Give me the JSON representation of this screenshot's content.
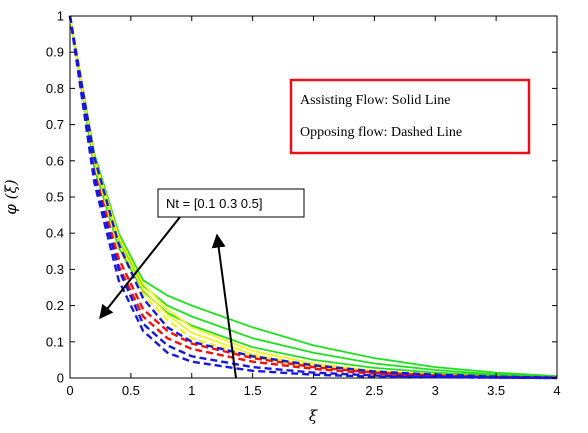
{
  "chart_data": {
    "type": "line",
    "xlabel": "ξ",
    "ylabel": "φ (ξ)",
    "xlim": [
      0,
      4
    ],
    "ylim": [
      0,
      1
    ],
    "x_ticks": [
      "0",
      "0.5",
      "1",
      "1.5",
      "2",
      "2.5",
      "3",
      "3.5",
      "4"
    ],
    "y_ticks": [
      "0",
      "0.1",
      "0.2",
      "0.3",
      "0.4",
      "0.5",
      "0.6",
      "0.7",
      "0.8",
      "0.9",
      "1"
    ],
    "grid": false,
    "legend_box": {
      "line1": "Assisting Flow:  Solid Line",
      "line2": "Opposing flow: Dashed Line",
      "border_color": "#e8101a"
    },
    "annotation": {
      "text": "Nt = [0.1  0.3  0.5]"
    },
    "colors": {
      "green": "#1fe01f",
      "yellow": "#f2f21c",
      "red": "#ee1111",
      "blue": "#1717dd"
    },
    "series": [
      {
        "color": "green",
        "style": "solid",
        "x": [
          0,
          0.2,
          0.4,
          0.6,
          0.8,
          1.0,
          1.5,
          2.0,
          2.5,
          3.0,
          3.5,
          4.0
        ],
        "values": [
          1.0,
          0.62,
          0.4,
          0.27,
          0.228,
          0.2,
          0.14,
          0.09,
          0.055,
          0.03,
          0.015,
          0.005
        ]
      },
      {
        "color": "green",
        "style": "solid",
        "x": [
          0,
          0.2,
          0.4,
          0.6,
          0.8,
          1.0,
          1.5,
          2.0,
          2.5,
          3.0,
          3.5,
          4.0
        ],
        "values": [
          1.0,
          0.6,
          0.38,
          0.255,
          0.2,
          0.17,
          0.11,
          0.07,
          0.04,
          0.022,
          0.01,
          0.003
        ]
      },
      {
        "color": "green",
        "style": "solid",
        "x": [
          0,
          0.2,
          0.4,
          0.6,
          0.8,
          1.0,
          1.5,
          2.0,
          2.5,
          3.0,
          3.5,
          4.0
        ],
        "values": [
          1.0,
          0.58,
          0.36,
          0.24,
          0.18,
          0.145,
          0.085,
          0.05,
          0.028,
          0.015,
          0.007,
          0.002
        ]
      },
      {
        "color": "yellow",
        "style": "solid",
        "x": [
          0,
          0.2,
          0.4,
          0.6,
          0.8,
          1.0,
          1.5,
          2.0,
          2.5,
          3.0,
          3.5,
          4.0
        ],
        "values": [
          1.0,
          0.61,
          0.39,
          0.26,
          0.19,
          0.14,
          0.075,
          0.04,
          0.02,
          0.01,
          0.004,
          0.001
        ]
      },
      {
        "color": "yellow",
        "style": "solid",
        "x": [
          0,
          0.2,
          0.4,
          0.6,
          0.8,
          1.0,
          1.5,
          2.0,
          2.5,
          3.0,
          3.5,
          4.0
        ],
        "values": [
          1.0,
          0.6,
          0.375,
          0.245,
          0.175,
          0.125,
          0.065,
          0.033,
          0.016,
          0.007,
          0.003,
          0.001
        ]
      },
      {
        "color": "yellow",
        "style": "dashed",
        "x": [
          0,
          0.2,
          0.4,
          0.6,
          0.8,
          1.0,
          1.5,
          2.0,
          2.5,
          3.0,
          3.5,
          4.0
        ],
        "values": [
          1.0,
          0.59,
          0.36,
          0.23,
          0.16,
          0.11,
          0.058,
          0.03,
          0.015,
          0.007,
          0.003,
          0.001
        ]
      },
      {
        "color": "red",
        "style": "dashed",
        "x": [
          0,
          0.2,
          0.4,
          0.6,
          0.8,
          1.0,
          1.5,
          2.0,
          2.5,
          3.0,
          3.5,
          4.0
        ],
        "values": [
          1.0,
          0.57,
          0.33,
          0.19,
          0.13,
          0.095,
          0.055,
          0.03,
          0.015,
          0.007,
          0.003,
          0.001
        ]
      },
      {
        "color": "red",
        "style": "dashed",
        "x": [
          0,
          0.2,
          0.4,
          0.6,
          0.8,
          1.0,
          1.5,
          2.0,
          2.5,
          3.0,
          3.5,
          4.0
        ],
        "values": [
          1.0,
          0.56,
          0.31,
          0.17,
          0.11,
          0.08,
          0.045,
          0.025,
          0.012,
          0.006,
          0.002,
          0.001
        ]
      },
      {
        "color": "blue",
        "style": "dashed",
        "x": [
          0,
          0.2,
          0.4,
          0.6,
          0.8,
          1.0,
          1.5,
          2.0,
          2.5,
          3.0,
          3.5,
          4.0
        ],
        "values": [
          1.0,
          0.61,
          0.37,
          0.22,
          0.14,
          0.1,
          0.06,
          0.035,
          0.018,
          0.009,
          0.004,
          0.001
        ]
      },
      {
        "color": "blue",
        "style": "dashed",
        "x": [
          0,
          0.2,
          0.4,
          0.6,
          0.8,
          1.0,
          1.5,
          2.0,
          2.5,
          3.0,
          3.5,
          4.0
        ],
        "values": [
          1.0,
          0.56,
          0.3,
          0.15,
          0.09,
          0.06,
          0.03,
          0.015,
          0.007,
          0.003,
          0.001,
          0.0
        ]
      },
      {
        "color": "blue",
        "style": "dashed",
        "x": [
          0,
          0.2,
          0.4,
          0.6,
          0.8,
          1.0,
          1.5,
          2.0,
          2.5,
          3.0,
          3.5,
          4.0
        ],
        "values": [
          1.0,
          0.54,
          0.27,
          0.13,
          0.07,
          0.045,
          0.02,
          0.009,
          0.004,
          0.002,
          0.001,
          0.0
        ]
      }
    ]
  }
}
